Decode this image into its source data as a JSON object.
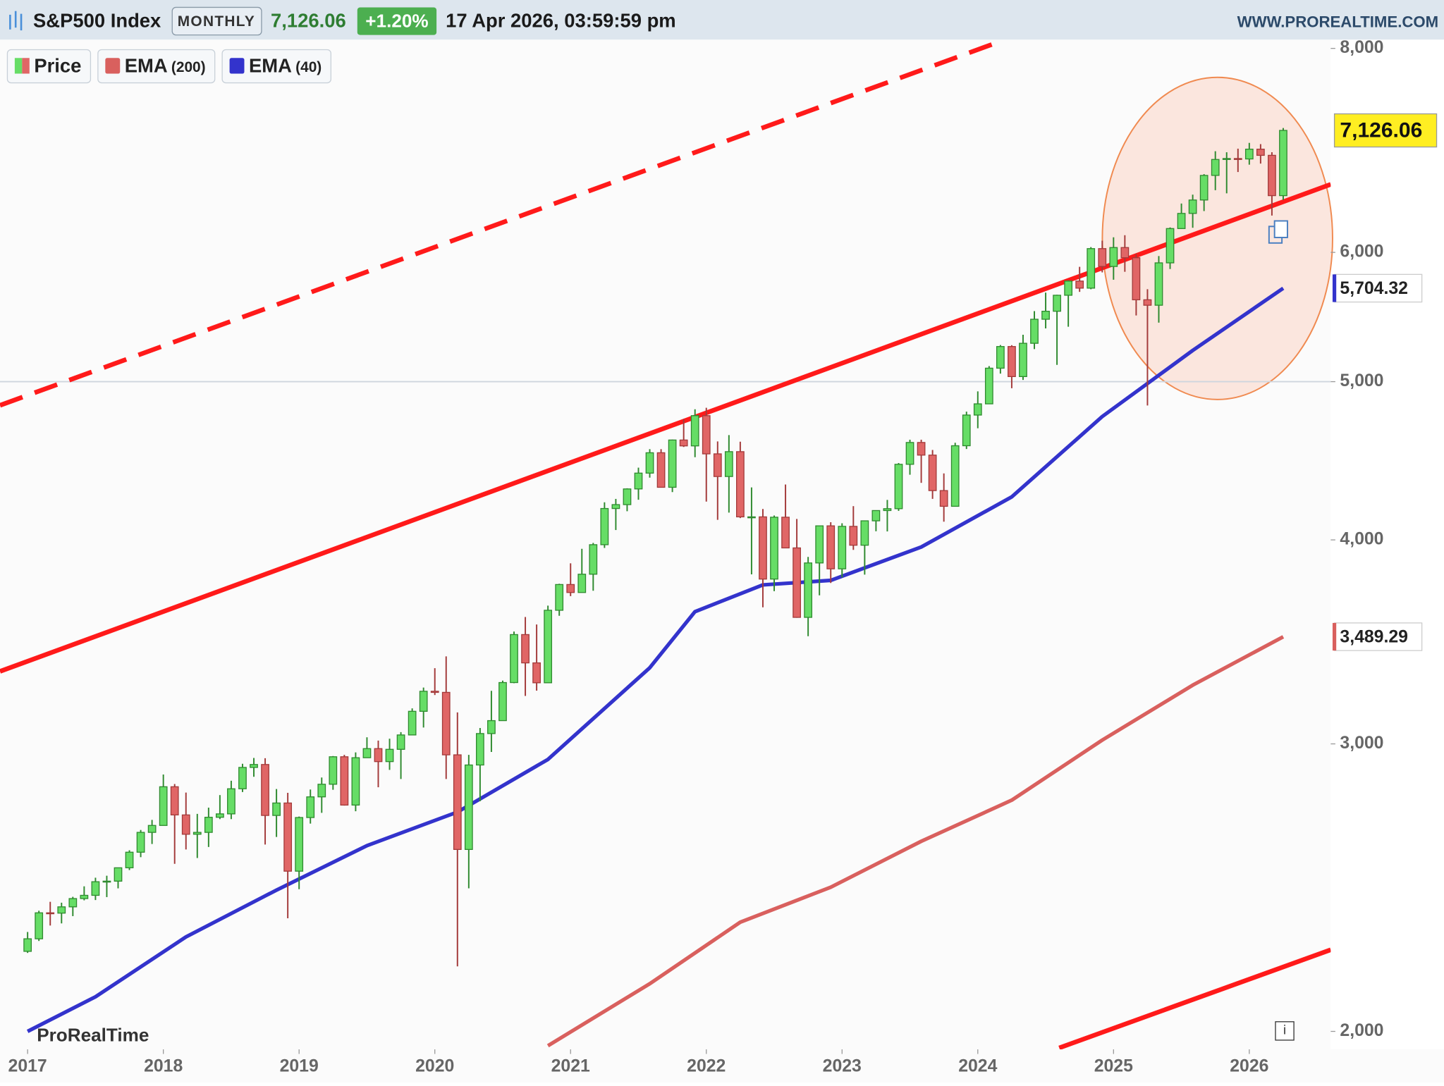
{
  "chart_data": {
    "type": "candlestick",
    "title": "S&P500 Index",
    "period": "MONTHLY",
    "header_price": "7,126.06",
    "header_change": "+1.20%",
    "header_datetime": "17 Apr 2026, 03:59:59 pm",
    "website": "WWW.PROREALTIME.COM",
    "watermark": "ProRealTime",
    "log_scale": true,
    "ylim": [
      1950,
      8100
    ],
    "yticks": [
      {
        "value": 2000,
        "label": "2,000"
      },
      {
        "value": 3000,
        "label": "3,000"
      },
      {
        "value": 4000,
        "label": "4,000"
      },
      {
        "value": 5000,
        "label": "5,000"
      },
      {
        "value": 6000,
        "label": "6,000"
      },
      {
        "value": 8000,
        "label": "8,000"
      }
    ],
    "xlim": [
      -2.44,
      115.2
    ],
    "xticks": [
      {
        "value": 0,
        "label": "2017"
      },
      {
        "value": 12,
        "label": "2018"
      },
      {
        "value": 24,
        "label": "2019"
      },
      {
        "value": 36,
        "label": "2020"
      },
      {
        "value": 48,
        "label": "2021"
      },
      {
        "value": 60,
        "label": "2022"
      },
      {
        "value": 72,
        "label": "2023"
      },
      {
        "value": 84,
        "label": "2024"
      },
      {
        "value": 96,
        "label": "2025"
      },
      {
        "value": 108,
        "label": "2026"
      }
    ],
    "reference_line": 5000,
    "series": [
      {
        "name": "Price",
        "up_color": "#66dd66",
        "down_color": "#e06666",
        "last_label": "7,126.06",
        "ohlc": [
          [
            2239,
            2301,
            2234,
            2279
          ],
          [
            2279,
            2371,
            2272,
            2364
          ],
          [
            2364,
            2401,
            2322,
            2363
          ],
          [
            2363,
            2398,
            2329,
            2384
          ],
          [
            2384,
            2418,
            2353,
            2412
          ],
          [
            2412,
            2454,
            2406,
            2423
          ],
          [
            2423,
            2484,
            2407,
            2470
          ],
          [
            2470,
            2491,
            2417,
            2472
          ],
          [
            2472,
            2520,
            2447,
            2519
          ],
          [
            2519,
            2582,
            2511,
            2575
          ],
          [
            2575,
            2657,
            2557,
            2648
          ],
          [
            2648,
            2695,
            2605,
            2674
          ],
          [
            2674,
            2873,
            2674,
            2824
          ],
          [
            2824,
            2835,
            2533,
            2714
          ],
          [
            2714,
            2801,
            2585,
            2641
          ],
          [
            2641,
            2718,
            2554,
            2648
          ],
          [
            2648,
            2742,
            2594,
            2705
          ],
          [
            2705,
            2791,
            2698,
            2718
          ],
          [
            2718,
            2848,
            2698,
            2816
          ],
          [
            2816,
            2917,
            2803,
            2902
          ],
          [
            2902,
            2941,
            2864,
            2914
          ],
          [
            2914,
            2940,
            2603,
            2712
          ],
          [
            2712,
            2815,
            2631,
            2760
          ],
          [
            2760,
            2800,
            2346,
            2507
          ],
          [
            2507,
            2708,
            2444,
            2704
          ],
          [
            2704,
            2813,
            2681,
            2784
          ],
          [
            2784,
            2861,
            2722,
            2834
          ],
          [
            2834,
            2949,
            2812,
            2946
          ],
          [
            2946,
            2954,
            2750,
            2752
          ],
          [
            2752,
            2964,
            2728,
            2942
          ],
          [
            2942,
            3028,
            2942,
            2980
          ],
          [
            2980,
            3014,
            2822,
            2926
          ],
          [
            2926,
            3022,
            2892,
            2977
          ],
          [
            2977,
            3050,
            2855,
            3038
          ],
          [
            3038,
            3154,
            3038,
            3141
          ],
          [
            3141,
            3248,
            3070,
            3231
          ],
          [
            3231,
            3338,
            3214,
            3226
          ],
          [
            3226,
            3394,
            2855,
            2954
          ],
          [
            2954,
            3136,
            2192,
            2585
          ],
          [
            2585,
            2954,
            2447,
            2912
          ],
          [
            2912,
            3068,
            2767,
            3044
          ],
          [
            3044,
            3233,
            2966,
            3100
          ],
          [
            3100,
            3280,
            3100,
            3271
          ],
          [
            3271,
            3515,
            3268,
            3500
          ],
          [
            3500,
            3588,
            3210,
            3363
          ],
          [
            3363,
            3550,
            3234,
            3270
          ],
          [
            3270,
            3646,
            3270,
            3622
          ],
          [
            3622,
            3760,
            3594,
            3756
          ],
          [
            3756,
            3870,
            3695,
            3714
          ],
          [
            3714,
            3950,
            3714,
            3811
          ],
          [
            3811,
            3983,
            3723,
            3973
          ],
          [
            3973,
            4218,
            3955,
            4181
          ],
          [
            4181,
            4238,
            4056,
            4204
          ],
          [
            4204,
            4302,
            4165,
            4298
          ],
          [
            4298,
            4429,
            4233,
            4395
          ],
          [
            4395,
            4546,
            4367,
            4523
          ],
          [
            4523,
            4546,
            4306,
            4308
          ],
          [
            4308,
            4608,
            4279,
            4605
          ],
          [
            4605,
            4744,
            4560,
            4567
          ],
          [
            4567,
            4809,
            4495,
            4766
          ],
          [
            4766,
            4819,
            4222,
            4516
          ],
          [
            4516,
            4596,
            4115,
            4374
          ],
          [
            4374,
            4637,
            4157,
            4530
          ],
          [
            4530,
            4594,
            4125,
            4132
          ],
          [
            4132,
            4307,
            3810,
            4132
          ],
          [
            4132,
            4178,
            3637,
            3785
          ],
          [
            3785,
            4140,
            3721,
            4130
          ],
          [
            4130,
            4325,
            3955,
            3955
          ],
          [
            3955,
            4120,
            3584,
            3586
          ],
          [
            3586,
            3905,
            3492,
            3872
          ],
          [
            3872,
            4080,
            3699,
            4080
          ],
          [
            4080,
            4101,
            3764,
            3840
          ],
          [
            3840,
            4095,
            3794,
            4077
          ],
          [
            4077,
            4195,
            3944,
            3970
          ],
          [
            3970,
            4110,
            3809,
            4109
          ],
          [
            4109,
            4170,
            4049,
            4169
          ],
          [
            4169,
            4232,
            4048,
            4180
          ],
          [
            4180,
            4458,
            4167,
            4450
          ],
          [
            4450,
            4607,
            4385,
            4589
          ],
          [
            4589,
            4607,
            4335,
            4508
          ],
          [
            4508,
            4541,
            4238,
            4288
          ],
          [
            4288,
            4393,
            4104,
            4194
          ],
          [
            4194,
            4587,
            4194,
            4568
          ],
          [
            4568,
            4793,
            4547,
            4770
          ],
          [
            4770,
            4932,
            4682,
            4846
          ],
          [
            4846,
            5111,
            4846,
            5096
          ],
          [
            5096,
            5265,
            5057,
            5254
          ],
          [
            5254,
            5264,
            4954,
            5036
          ],
          [
            5036,
            5342,
            5012,
            5278
          ],
          [
            5278,
            5523,
            5235,
            5460
          ],
          [
            5460,
            5669,
            5390,
            5522
          ],
          [
            5522,
            5652,
            5120,
            5648
          ],
          [
            5648,
            5768,
            5403,
            5762
          ],
          [
            5762,
            5879,
            5675,
            5705
          ],
          [
            5705,
            6045,
            5696,
            6032
          ],
          [
            6032,
            6100,
            5833,
            5882
          ],
          [
            5882,
            6129,
            5773,
            6041
          ],
          [
            6041,
            6147,
            5838,
            5955
          ],
          [
            5955,
            5987,
            5489,
            5612
          ],
          [
            5612,
            5696,
            4835,
            5569
          ],
          [
            5569,
            5969,
            5434,
            5912
          ],
          [
            5912,
            6215,
            5861,
            6205
          ],
          [
            6205,
            6428,
            6202,
            6339
          ],
          [
            6339,
            6509,
            6212,
            6460
          ],
          [
            6460,
            6700,
            6360,
            6688
          ],
          [
            6688,
            6920,
            6550,
            6840
          ],
          [
            6840,
            6910,
            6521,
            6849
          ],
          [
            6849,
            6945,
            6720,
            6845
          ],
          [
            6845,
            7002,
            6790,
            6940
          ],
          [
            6940,
            6990,
            6800,
            6880
          ],
          [
            6880,
            6910,
            6320,
            6500
          ],
          [
            6500,
            7150,
            6460,
            7126.06
          ]
        ]
      },
      {
        "name": "EMA",
        "period_label": "(200)",
        "color": "#d9605e",
        "last_label": "3,489.29",
        "x": [
          46,
          55,
          63,
          71,
          79,
          87,
          95,
          103,
          111
        ],
        "values": [
          1960,
          2139,
          2333,
          2451,
          2615,
          2771,
          3016,
          3259,
          3489.29
        ]
      },
      {
        "name": "EMA",
        "period_label": "(40)",
        "color": "#3333cc",
        "last_label": "5,704.32",
        "x": [
          0,
          6,
          14,
          22,
          30,
          38,
          46,
          55,
          59,
          65,
          71,
          79,
          87,
          95,
          103,
          111
        ],
        "values": [
          2000,
          2100,
          2285,
          2441,
          2599,
          2725,
          2935,
          3340,
          3615,
          3754,
          3778,
          3960,
          4250,
          4760,
          5225,
          5704.32
        ]
      }
    ],
    "trend_lines": [
      {
        "x": [
          -2.44,
          115.2
        ],
        "values": [
          3323,
          6604
        ],
        "color": "#ff1a1a",
        "style": "solid"
      },
      {
        "x": [
          -2.44,
          86.3
        ],
        "values": [
          4836,
          8094
        ],
        "color": "#ff1a1a",
        "style": "dashed"
      },
      {
        "x": [
          91.2,
          115.2
        ],
        "values": [
          1954,
          2244
        ],
        "color": "#ff1a1a",
        "style": "solid"
      }
    ]
  }
}
